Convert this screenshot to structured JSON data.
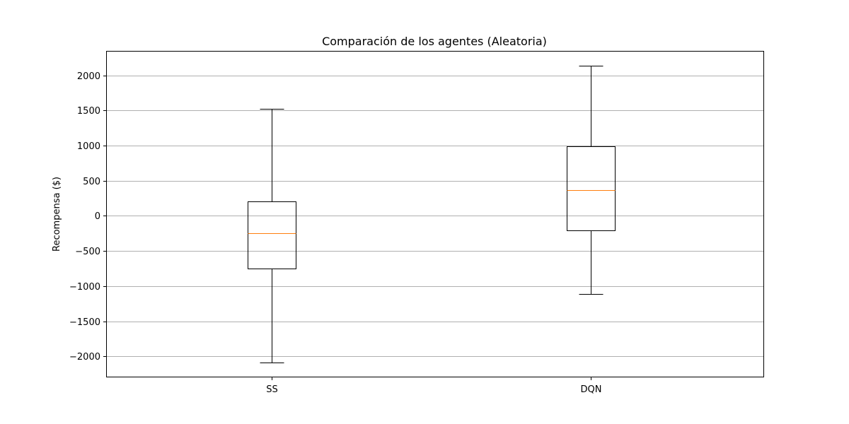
{
  "chart_data": {
    "type": "box",
    "title": "Comparación de los agentes (Aleatoria)",
    "xlabel": "",
    "ylabel": "Recompensa ($)",
    "ylim": [
      -2300,
      2350
    ],
    "yticks": [
      2000,
      1500,
      1000,
      500,
      0,
      -500,
      -1000,
      -1500,
      -2000
    ],
    "ytick_labels": [
      "2000",
      "1500",
      "1000",
      "500",
      "0",
      "−500",
      "−1000",
      "−1500",
      "−2000"
    ],
    "grid": {
      "y": true,
      "x": false
    },
    "categories": [
      "SS",
      "DQN"
    ],
    "boxes": [
      {
        "label": "SS",
        "whisker_low": -2090,
        "q1": -755,
        "median": -245,
        "q3": 205,
        "whisker_high": 1520
      },
      {
        "label": "DQN",
        "whisker_low": -1110,
        "q1": -205,
        "median": 370,
        "q3": 990,
        "whisker_high": 2140
      }
    ],
    "colors": {
      "box": "#000000",
      "median": "#ff7f0e",
      "grid": "#b0b0b0"
    }
  }
}
